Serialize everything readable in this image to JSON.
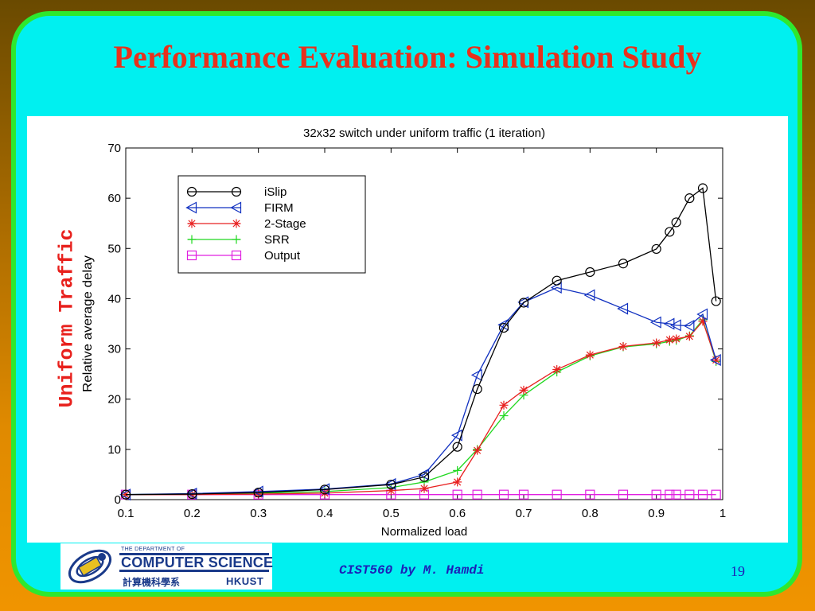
{
  "slide": {
    "title": "Performance Evaluation: Simulation Study",
    "side_label": "Uniform Traffic",
    "footer_author": "CIST560 by M. Hamdi",
    "page_number": "19",
    "logo": {
      "small_text": "THE DEPARTMENT OF",
      "name": "COMPUTER SCIENCE",
      "chinese": "計算機科學系",
      "institution": "HKUST"
    },
    "colors": {
      "title": "#e8301c",
      "background": "#00f0f0",
      "border": "#2ee82e"
    }
  },
  "chart_data": {
    "type": "line",
    "title": "32x32 switch under uniform traffic (1 iteration)",
    "xlabel": "Normalized load",
    "ylabel": "Relative average delay",
    "xlim": [
      0.1,
      1
    ],
    "ylim": [
      0,
      70
    ],
    "xticks": [
      0.1,
      0.2,
      0.3,
      0.4,
      0.5,
      0.6,
      0.7,
      0.8,
      0.9,
      1
    ],
    "xtick_labels": [
      "0.1",
      "0.2",
      "0.3",
      "0.4",
      "0.5",
      "0.6",
      "0.7",
      "0.8",
      "0.9",
      "1"
    ],
    "yticks": [
      0,
      10,
      20,
      30,
      40,
      50,
      60,
      70
    ],
    "ytick_labels": [
      "0",
      "10",
      "20",
      "30",
      "40",
      "50",
      "60",
      "70"
    ],
    "legend_position": "top-left",
    "grid": false,
    "series": [
      {
        "name": "iSlip",
        "color": "#000000",
        "marker": "circle",
        "x": [
          0.1,
          0.2,
          0.3,
          0.4,
          0.5,
          0.55,
          0.6,
          0.63,
          0.67,
          0.7,
          0.75,
          0.8,
          0.85,
          0.9,
          0.92,
          0.93,
          0.95,
          0.97,
          0.99
        ],
        "y": [
          1,
          1.1,
          1.4,
          2,
          3,
          4.5,
          10.5,
          22,
          34.2,
          39.2,
          43.6,
          45.3,
          47,
          49.9,
          53.3,
          55.2,
          60,
          62,
          39.5
        ]
      },
      {
        "name": "FIRM",
        "color": "#1030c0",
        "marker": "triangle-left",
        "x": [
          0.1,
          0.2,
          0.3,
          0.4,
          0.5,
          0.55,
          0.6,
          0.63,
          0.67,
          0.7,
          0.75,
          0.8,
          0.85,
          0.9,
          0.92,
          0.93,
          0.95,
          0.97,
          0.99
        ],
        "y": [
          1,
          1.2,
          1.6,
          2.1,
          3.1,
          5,
          12.8,
          24.8,
          34.8,
          39.3,
          42.2,
          40.7,
          38,
          35.3,
          35,
          34.7,
          34.6,
          36.9,
          27.8
        ]
      },
      {
        "name": "2-Stage",
        "color": "#e82020",
        "marker": "star",
        "x": [
          0.1,
          0.2,
          0.3,
          0.4,
          0.5,
          0.55,
          0.6,
          0.63,
          0.67,
          0.7,
          0.75,
          0.8,
          0.85,
          0.9,
          0.92,
          0.93,
          0.95,
          0.97,
          0.99
        ],
        "y": [
          1,
          1,
          1.1,
          1.3,
          1.8,
          2.2,
          3.5,
          9.8,
          18.8,
          21.8,
          25.9,
          28.8,
          30.5,
          31.2,
          31.8,
          32,
          32.5,
          35.5,
          27.8
        ]
      },
      {
        "name": "SRR",
        "color": "#20d820",
        "marker": "plus",
        "x": [
          0.1,
          0.2,
          0.3,
          0.4,
          0.5,
          0.55,
          0.6,
          0.63,
          0.67,
          0.7,
          0.75,
          0.8,
          0.85,
          0.9,
          0.92,
          0.93,
          0.95,
          0.97,
          0.99
        ],
        "y": [
          1,
          1.1,
          1.3,
          1.6,
          2.4,
          3.5,
          5.8,
          10,
          16.7,
          20.8,
          25.4,
          28.6,
          30.4,
          31,
          31.5,
          31.7,
          32.6,
          35.8,
          27.5
        ]
      },
      {
        "name": "Output",
        "color": "#e020e0",
        "marker": "square",
        "x": [
          0.1,
          0.2,
          0.3,
          0.4,
          0.5,
          0.55,
          0.6,
          0.63,
          0.67,
          0.7,
          0.75,
          0.8,
          0.85,
          0.9,
          0.92,
          0.93,
          0.95,
          0.97,
          0.99
        ],
        "y": [
          1,
          1,
          1,
          1,
          1,
          1,
          1,
          1,
          1,
          1,
          1,
          1,
          1,
          1,
          1,
          1,
          1,
          1,
          1
        ]
      }
    ]
  }
}
